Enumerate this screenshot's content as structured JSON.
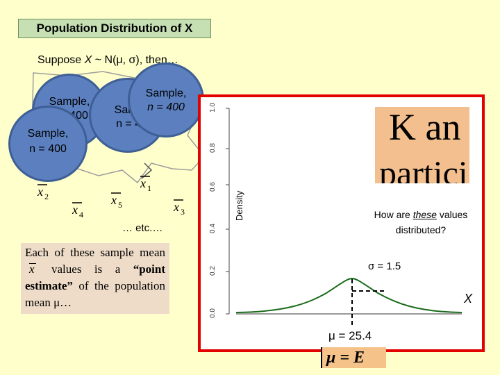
{
  "title": "Population Distribution of X",
  "suppose": {
    "prefix": "Suppose ",
    "var": "X",
    "mid": " ~ N(μ, σ), then…"
  },
  "circles": [
    {
      "line1": "Sample,",
      "line2": "n = 400"
    },
    {
      "line1": "Sample,",
      "line2": "n = 400"
    },
    {
      "line1": "Sample,",
      "line2": "n = 400"
    },
    {
      "line1": "Sample,",
      "line2": "n = 400"
    }
  ],
  "sample_means": [
    "x2",
    "x4",
    "x5",
    "x1",
    "x3"
  ],
  "etc": "… etc.…",
  "point_estimate": {
    "part1": "Each of these sample mean",
    "part2": "values is a",
    "bold": "“point estimate”",
    "part3": "of the population mean μ…"
  },
  "chart": {
    "ylabel": "Density",
    "yticks": [
      "0.0",
      "0.2",
      "0.4",
      "0.6",
      "0.8",
      "1.0"
    ]
  },
  "k_box": {
    "line1": "K an",
    "line2": "partici"
  },
  "question": {
    "prefix": "How are ",
    "emph": "these",
    "suffix": " values distributed?"
  },
  "sigma": "σ = 1.5",
  "x_axis_label": "X",
  "mu": "μ = 25.4",
  "formula": "μ = E",
  "colors": {
    "title_bg": "#c6e0b4",
    "circle": "#5b7fbf",
    "frame": "#e30000",
    "curve": "#1a6b1a",
    "k_box": "#f3bf8e",
    "formula_bg": "#f5c38a",
    "page_bg": "#ffffcc"
  }
}
